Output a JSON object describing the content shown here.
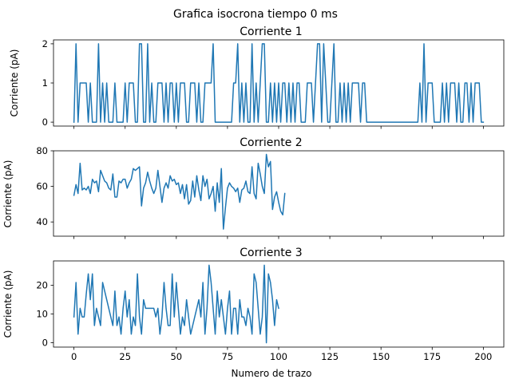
{
  "figure": {
    "suptitle": "Grafica isocrona tiempo 0 ms",
    "series_color": "#1f77b4"
  },
  "chart_data": [
    {
      "type": "line",
      "title": "Corriente 1",
      "xlabel": "",
      "ylabel": "Corriente (pA)",
      "xlim": [
        -10,
        210
      ],
      "ylim": [
        -0.1,
        2.1
      ],
      "xticks": [
        0,
        25,
        50,
        75,
        100,
        125,
        150,
        175,
        200
      ],
      "xtick_labels_visible": false,
      "yticks": [
        0,
        1,
        2
      ],
      "ytick_labels": [
        "0",
        "1",
        "2"
      ],
      "grid": false,
      "series": [
        {
          "x_start": 0,
          "values": [
            0,
            2,
            0,
            1,
            1,
            1,
            1,
            0,
            1,
            0,
            0,
            0,
            2,
            0,
            1,
            0,
            1,
            0,
            0,
            0,
            1,
            0,
            0,
            0,
            0,
            1,
            0,
            1,
            1,
            1,
            0,
            0,
            2,
            2,
            0,
            0,
            2,
            0,
            1,
            0,
            0,
            1,
            1,
            1,
            0,
            1,
            0,
            1,
            1,
            0,
            1,
            0,
            1,
            1,
            1,
            0,
            0,
            1,
            1,
            1,
            0,
            1,
            0,
            0,
            1,
            1,
            1,
            1,
            2,
            0,
            0,
            0,
            0,
            0,
            0,
            0,
            0,
            0,
            1,
            1,
            2,
            0,
            1,
            0,
            1,
            0,
            0,
            2,
            0,
            1,
            0,
            1,
            2,
            2,
            0,
            0,
            1,
            0,
            1,
            0,
            1,
            0,
            1,
            1,
            0,
            1,
            0,
            1,
            0,
            1,
            1,
            0,
            0,
            0,
            1,
            1,
            1,
            0,
            1,
            2,
            2,
            0,
            2,
            1,
            0,
            0,
            1,
            2,
            0,
            0,
            1,
            0,
            1,
            0,
            1,
            0,
            1,
            1,
            1,
            1,
            0,
            1,
            1,
            0,
            0,
            0,
            0,
            0,
            0,
            0,
            0,
            0,
            0,
            0,
            0,
            0,
            0,
            0,
            0,
            0,
            0,
            0,
            0,
            0,
            0,
            0,
            0,
            0,
            0,
            1,
            0,
            2,
            0,
            1,
            1,
            1,
            0,
            0,
            0,
            0,
            1,
            0,
            1,
            0,
            1,
            1,
            1,
            0,
            1,
            0,
            0,
            1,
            1,
            0,
            1,
            0,
            1,
            1,
            1,
            0,
            0
          ]
        }
      ]
    },
    {
      "type": "line",
      "title": "Corriente 2",
      "xlabel": "",
      "ylabel": "Corriente (pA)",
      "xlim": [
        -10,
        210
      ],
      "ylim": [
        32,
        80
      ],
      "xticks": [
        0,
        25,
        50,
        75,
        100,
        125,
        150,
        175,
        200
      ],
      "xtick_labels_visible": false,
      "yticks": [
        40,
        60,
        80
      ],
      "ytick_labels": [
        "40",
        "60",
        "80"
      ],
      "grid": false,
      "series": [
        {
          "x_start": 0,
          "values": [
            55,
            61,
            56,
            73,
            58,
            59,
            58,
            60,
            56,
            64,
            62,
            63,
            57,
            69,
            66,
            63,
            62,
            59,
            58,
            67,
            54,
            54,
            63,
            62,
            64,
            64,
            59,
            62,
            64,
            70,
            69,
            70,
            71,
            49,
            59,
            62,
            68,
            63,
            59,
            56,
            59,
            69,
            60,
            51,
            59,
            62,
            59,
            66,
            63,
            64,
            61,
            62,
            56,
            61,
            53,
            61,
            50,
            52,
            63,
            54,
            66,
            58,
            52,
            66,
            60,
            64,
            53,
            56,
            60,
            46,
            62,
            51,
            70,
            36,
            48,
            59,
            62,
            60,
            59,
            57,
            59,
            51,
            58,
            59,
            63,
            57,
            56,
            71,
            56,
            53,
            73,
            67,
            60,
            56,
            78,
            71,
            74,
            47,
            54,
            57,
            51,
            46,
            44,
            56
          ]
        }
      ]
    },
    {
      "type": "line",
      "title": "Corriente 3",
      "xlabel": "Numero de trazo",
      "ylabel": "Corriente (pA)",
      "xlim": [
        -10,
        210
      ],
      "ylim": [
        -1.5,
        28.5
      ],
      "xticks": [
        0,
        25,
        50,
        75,
        100,
        125,
        150,
        175,
        200
      ],
      "xtick_labels_visible": true,
      "xtick_labels": [
        "0",
        "25",
        "50",
        "75",
        "100",
        "125",
        "150",
        "175",
        "200"
      ],
      "yticks": [
        0,
        10,
        20
      ],
      "ytick_labels": [
        "0",
        "10",
        "20"
      ],
      "grid": false,
      "series": [
        {
          "x_start": 0,
          "values": [
            9,
            21,
            3,
            12,
            9,
            9,
            17,
            24,
            15,
            24,
            6,
            12,
            9,
            6,
            21,
            18,
            15,
            12,
            9,
            6,
            18,
            6,
            9,
            3,
            12,
            18,
            9,
            15,
            3,
            9,
            6,
            24,
            9,
            3,
            15,
            12,
            12,
            12,
            12,
            12,
            9,
            12,
            3,
            9,
            21,
            12,
            6,
            6,
            24,
            9,
            21,
            12,
            3,
            9,
            6,
            15,
            9,
            3,
            6,
            9,
            12,
            15,
            9,
            21,
            3,
            12,
            27,
            21,
            12,
            3,
            18,
            9,
            15,
            9,
            3,
            12,
            18,
            3,
            12,
            12,
            3,
            15,
            9,
            9,
            6,
            12,
            9,
            3,
            24,
            21,
            12,
            3,
            9,
            27,
            0,
            24,
            21,
            15,
            6,
            15,
            12
          ]
        }
      ]
    }
  ]
}
